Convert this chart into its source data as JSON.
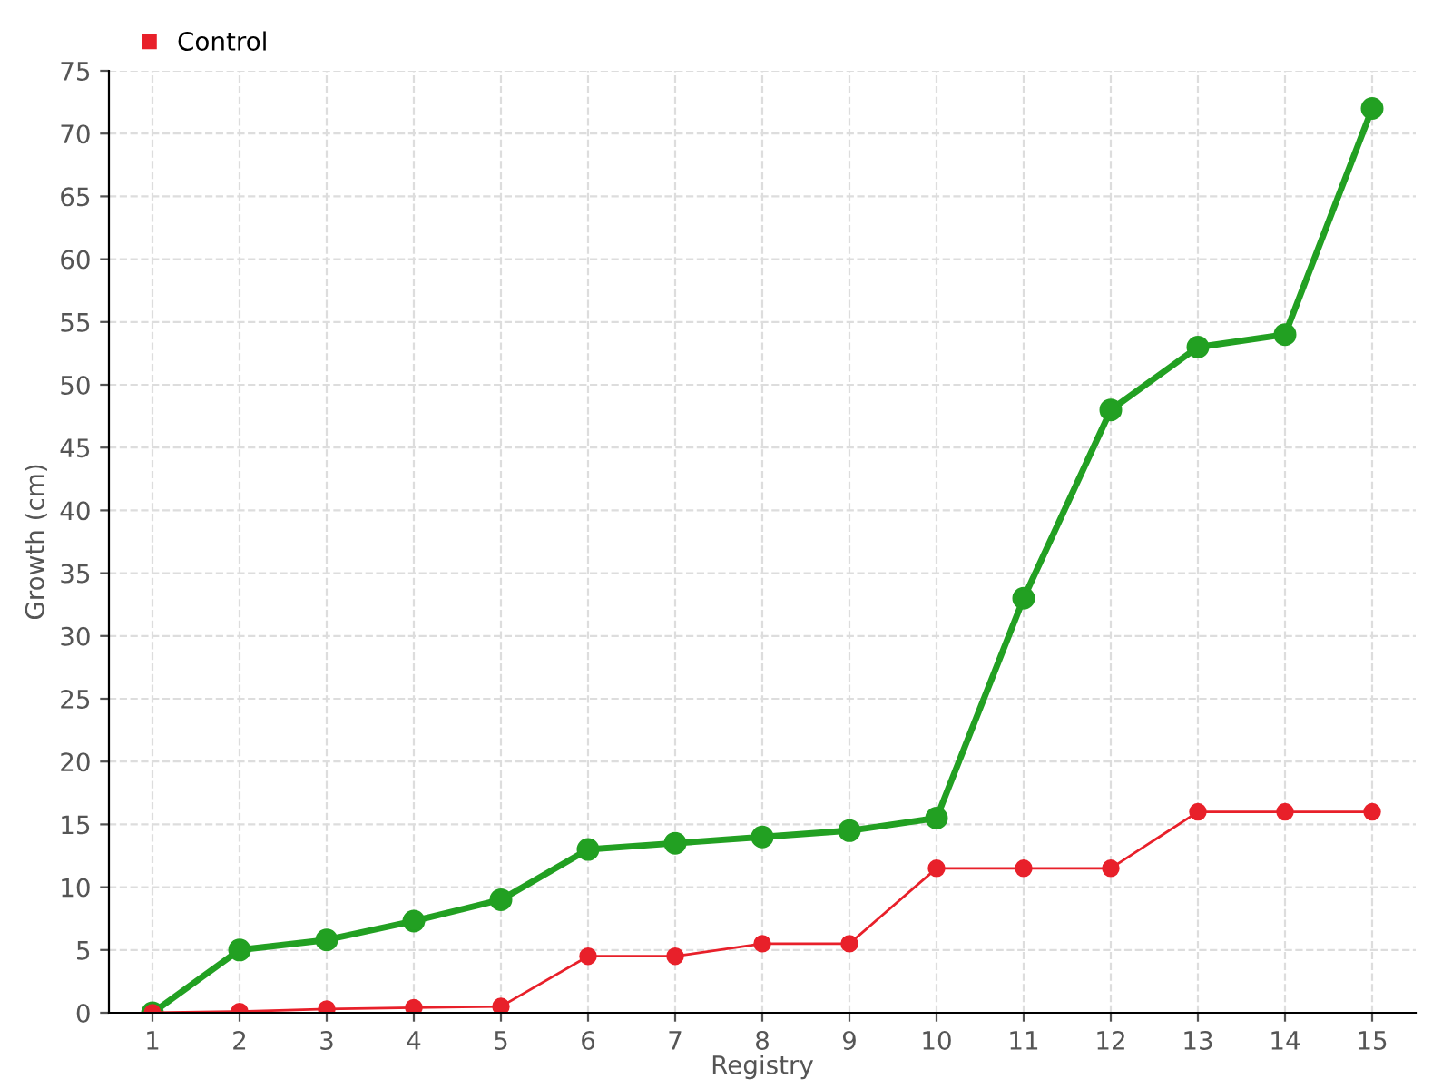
{
  "chart_data": {
    "type": "line",
    "xlabel": "Registry",
    "ylabel": "Growth (cm)",
    "categories": [
      "1",
      "2",
      "3",
      "4",
      "5",
      "6",
      "7",
      "8",
      "9",
      "10",
      "11",
      "12",
      "13",
      "14",
      "15"
    ],
    "series": [
      {
        "color": "#22a022",
        "values": [
          0,
          5,
          5.8,
          7.3,
          9,
          13,
          13.5,
          14,
          14.5,
          15.5,
          33,
          48,
          53,
          54,
          72
        ]
      },
      {
        "name": "Control",
        "color": "#e8202a",
        "values": [
          0,
          0.1,
          0.3,
          0.4,
          0.5,
          4.5,
          4.5,
          5.5,
          5.5,
          11.5,
          11.5,
          11.5,
          16,
          16,
          16
        ]
      }
    ],
    "ylim": [
      0,
      75
    ],
    "yticks": [
      0,
      5,
      10,
      15,
      20,
      25,
      30,
      35,
      40,
      45,
      50,
      55,
      60,
      65,
      70,
      75
    ],
    "grid": true,
    "legend": "top left",
    "marker": "circle",
    "line_style": "solid"
  }
}
